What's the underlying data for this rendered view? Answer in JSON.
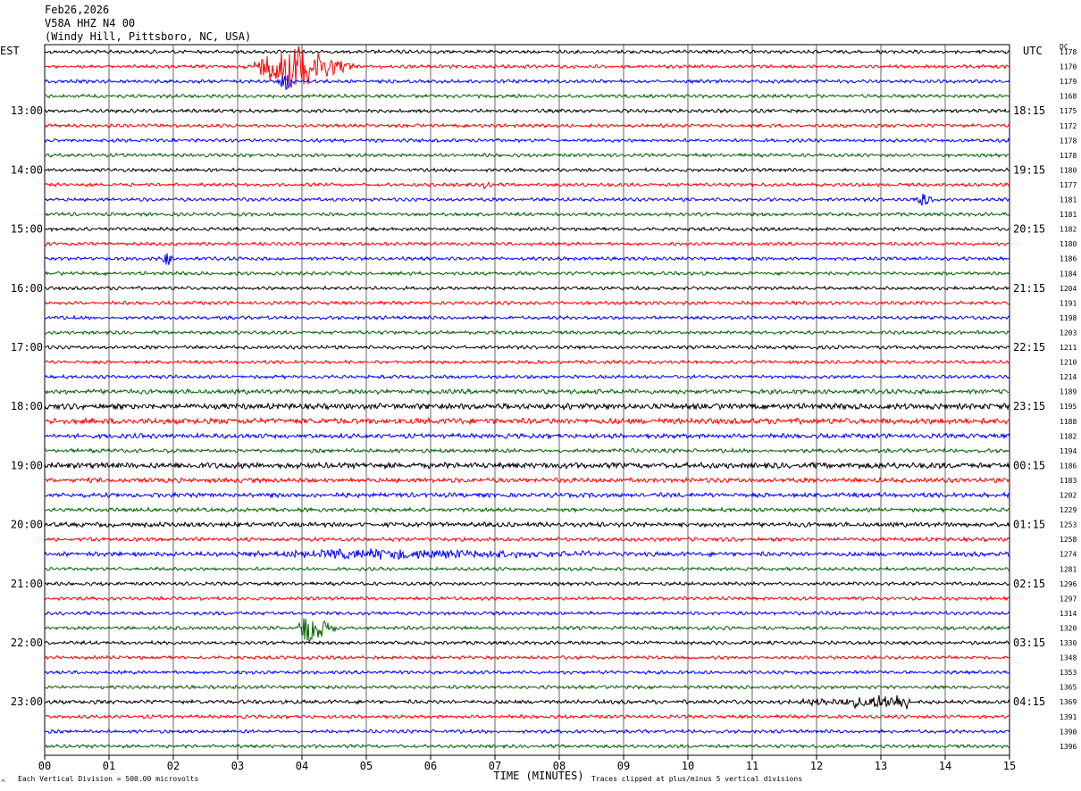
{
  "header": {
    "date": "Feb26,2026",
    "channel": "V58A HHZ N4 00",
    "station": "(Windy Hill, Pittsboro, NC, USA)"
  },
  "left_axis_label": "EST",
  "right_axis_label": "UTC",
  "dc_label": "DC",
  "footer": {
    "scale_note": "Each Vertical Division =  500.00 microvolts",
    "clip_note": "Traces clipped at plus/minus 5 vertical divisions",
    "mark": "^"
  },
  "colors": [
    "#000000",
    "#ff0000",
    "#0000ff",
    "#006400"
  ],
  "chart_data": {
    "type": "line",
    "title": "V58A HHZ N4 00",
    "xlabel": "TIME (MINUTES)",
    "xlim": [
      0,
      15
    ],
    "x_ticks": [
      "00",
      "01",
      "02",
      "03",
      "04",
      "05",
      "06",
      "07",
      "08",
      "09",
      "10",
      "11",
      "12",
      "13",
      "14",
      "15"
    ],
    "trace_minutes": 15,
    "trace_count": 48,
    "grid": true,
    "est_hour_labels": [
      "13:00",
      "14:00",
      "15:00",
      "16:00",
      "17:00",
      "18:00",
      "19:00",
      "20:00",
      "21:00",
      "22:00",
      "23:00"
    ],
    "utc_hour_labels": [
      "18:15",
      "19:15",
      "20:15",
      "21:15",
      "22:15",
      "23:15",
      "00:15",
      "01:15",
      "02:15",
      "03:15",
      "04:15"
    ],
    "dc_offsets": [
      1178,
      1170,
      1179,
      1168,
      1175,
      1172,
      1178,
      1178,
      1180,
      1177,
      1181,
      1181,
      1182,
      1180,
      1186,
      1184,
      1204,
      1191,
      1198,
      1203,
      1211,
      1210,
      1214,
      1189,
      1195,
      1188,
      1182,
      1194,
      1186,
      1183,
      1202,
      1229,
      1253,
      1258,
      1274,
      1281,
      1296,
      1297,
      1314,
      1320,
      1330,
      1348,
      1353,
      1365,
      1369,
      1391,
      1390,
      1396
    ],
    "trace_noise_level": [
      1,
      1,
      1,
      1,
      1,
      1,
      1,
      1,
      1,
      1,
      1,
      1,
      1,
      1,
      1,
      1,
      1,
      1,
      1,
      1,
      1,
      1,
      1,
      1.5,
      2,
      2,
      1.5,
      1.2,
      2,
      1.5,
      1.5,
      1.2,
      1.5,
      1.2,
      1.5,
      1,
      1,
      1,
      1,
      1,
      1,
      1,
      1,
      1,
      1.2,
      1,
      1,
      1
    ],
    "events": [
      {
        "trace": 1,
        "start_min": 3.1,
        "end_min": 4.9,
        "peak_min": 3.8,
        "peak_amplitude_div": 5
      },
      {
        "trace": 2,
        "start_min": 3.6,
        "end_min": 3.9,
        "peak_min": 3.75,
        "peak_amplitude_div": 2
      },
      {
        "trace": 9,
        "start_min": 6.75,
        "end_min": 6.95,
        "peak_min": 6.85,
        "peak_amplitude_div": 1
      },
      {
        "trace": 10,
        "start_min": 13.5,
        "end_min": 13.9,
        "peak_min": 13.65,
        "peak_amplitude_div": 1.5
      },
      {
        "trace": 14,
        "start_min": 1.8,
        "end_min": 2.0,
        "peak_min": 1.9,
        "peak_amplitude_div": 1.5
      },
      {
        "trace": 34,
        "start_min": 3.0,
        "end_min": 9.5,
        "peak_min": 5.0,
        "peak_amplitude_div": 1
      },
      {
        "trace": 39,
        "start_min": 3.9,
        "end_min": 4.6,
        "peak_min": 4.05,
        "peak_amplitude_div": 3.5
      },
      {
        "trace": 44,
        "start_min": 11.2,
        "end_min": 13.5,
        "peak_min": 13.4,
        "peak_amplitude_div": 1.5
      }
    ]
  }
}
